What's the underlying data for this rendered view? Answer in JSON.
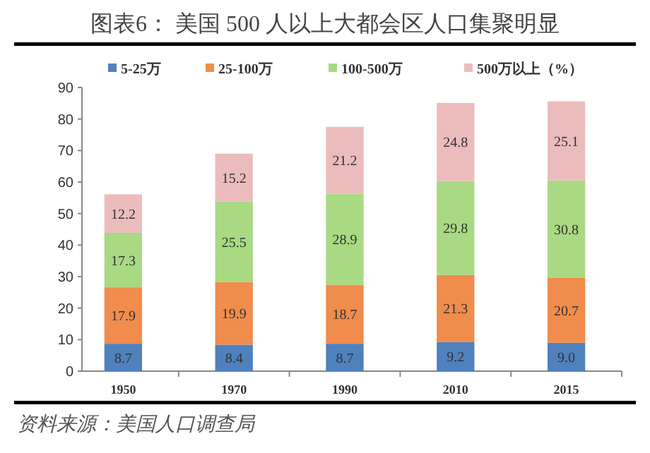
{
  "chart_data": {
    "type": "bar",
    "title": "图表6：  美国 500 人以上大都会区人口集聚明显",
    "stacked": true,
    "categories": [
      "1950",
      "1970",
      "1990",
      "2010",
      "2015"
    ],
    "series": [
      {
        "name": "5-25万",
        "color": "#4f81bd",
        "values": [
          8.7,
          8.4,
          8.7,
          9.2,
          9.0
        ],
        "value_labels": [
          "8.7",
          "8.4",
          "8.7",
          "9.2",
          "9.0"
        ]
      },
      {
        "name": "25-100万",
        "color": "#f08c4c",
        "values": [
          17.9,
          19.9,
          18.7,
          21.3,
          20.7
        ]
      },
      {
        "name": "100-500万",
        "color": "#a9d982",
        "values": [
          17.3,
          25.5,
          28.9,
          29.8,
          30.8
        ]
      },
      {
        "name": "500万以上（%）",
        "color": "#ecbcbd",
        "values": [
          12.2,
          15.2,
          21.2,
          24.8,
          25.1
        ]
      }
    ],
    "ylim": [
      0,
      90
    ],
    "yticks": [
      0,
      10,
      20,
      30,
      40,
      50,
      60,
      70,
      80,
      90
    ],
    "grid": false,
    "legend": "top",
    "data_labels": true,
    "annotations": [
      "资料来源：美国人口调查局"
    ]
  }
}
